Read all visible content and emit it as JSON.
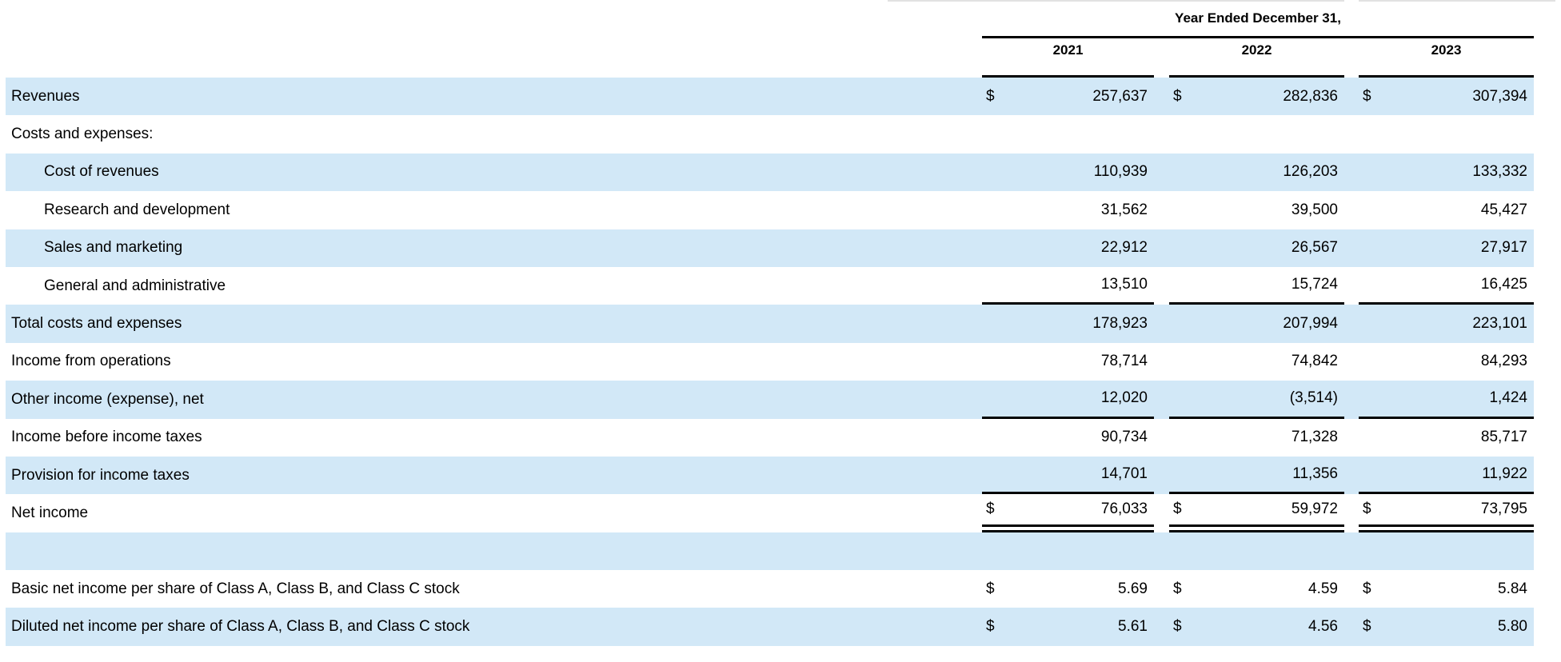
{
  "table": {
    "currency_symbol": "$",
    "header": {
      "title": "Year Ended December 31,",
      "years": [
        "2021",
        "2022",
        "2023"
      ]
    },
    "rows": [
      {
        "label": "Revenues",
        "indent": 0,
        "shaded": true,
        "dollar": true,
        "rule": "none",
        "values": [
          "257,637",
          "282,836",
          "307,394"
        ]
      },
      {
        "label": "Costs and expenses:",
        "indent": 0,
        "shaded": false,
        "dollar": false,
        "rule": "none",
        "values": [
          "",
          "",
          ""
        ]
      },
      {
        "label": "Cost of revenues",
        "indent": 1,
        "shaded": true,
        "dollar": false,
        "rule": "none",
        "values": [
          "110,939",
          "126,203",
          "133,332"
        ]
      },
      {
        "label": "Research and development",
        "indent": 1,
        "shaded": false,
        "dollar": false,
        "rule": "none",
        "values": [
          "31,562",
          "39,500",
          "45,427"
        ]
      },
      {
        "label": "Sales and marketing",
        "indent": 1,
        "shaded": true,
        "dollar": false,
        "rule": "none",
        "values": [
          "22,912",
          "26,567",
          "27,917"
        ]
      },
      {
        "label": "General and administrative",
        "indent": 1,
        "shaded": false,
        "dollar": false,
        "rule": "single",
        "values": [
          "13,510",
          "15,724",
          "16,425"
        ]
      },
      {
        "label": "Total costs and expenses",
        "indent": 0,
        "shaded": true,
        "dollar": false,
        "rule": "none",
        "values": [
          "178,923",
          "207,994",
          "223,101"
        ]
      },
      {
        "label": "Income from operations",
        "indent": 0,
        "shaded": false,
        "dollar": false,
        "rule": "none",
        "values": [
          "78,714",
          "74,842",
          "84,293"
        ]
      },
      {
        "label": "Other income (expense), net",
        "indent": 0,
        "shaded": true,
        "dollar": false,
        "rule": "single",
        "values": [
          "12,020",
          "(3,514)",
          "1,424"
        ]
      },
      {
        "label": "Income before income taxes",
        "indent": 0,
        "shaded": false,
        "dollar": false,
        "rule": "none",
        "values": [
          "90,734",
          "71,328",
          "85,717"
        ]
      },
      {
        "label": "Provision for income taxes",
        "indent": 0,
        "shaded": true,
        "dollar": false,
        "rule": "single",
        "values": [
          "14,701",
          "11,356",
          "11,922"
        ]
      },
      {
        "label": "Net income",
        "indent": 0,
        "shaded": false,
        "dollar": true,
        "rule": "double",
        "values": [
          "76,033",
          "59,972",
          "73,795"
        ]
      },
      {
        "label": "",
        "indent": 0,
        "shaded": true,
        "dollar": false,
        "rule": "none",
        "values": [
          "",
          "",
          ""
        ]
      },
      {
        "label": "Basic net income per share of Class A, Class B, and Class C stock",
        "indent": 0,
        "shaded": false,
        "dollar": true,
        "rule": "none",
        "values": [
          "5.69",
          "4.59",
          "5.84"
        ]
      },
      {
        "label": "Diluted net income per share of Class A, Class B, and Class C stock",
        "indent": 0,
        "shaded": true,
        "dollar": true,
        "rule": "none",
        "values": [
          "5.61",
          "4.56",
          "5.80"
        ]
      }
    ],
    "colors": {
      "shaded_row": "#d2e8f7",
      "rule": "#000000",
      "top_hairline": "#e2e2e2"
    }
  }
}
